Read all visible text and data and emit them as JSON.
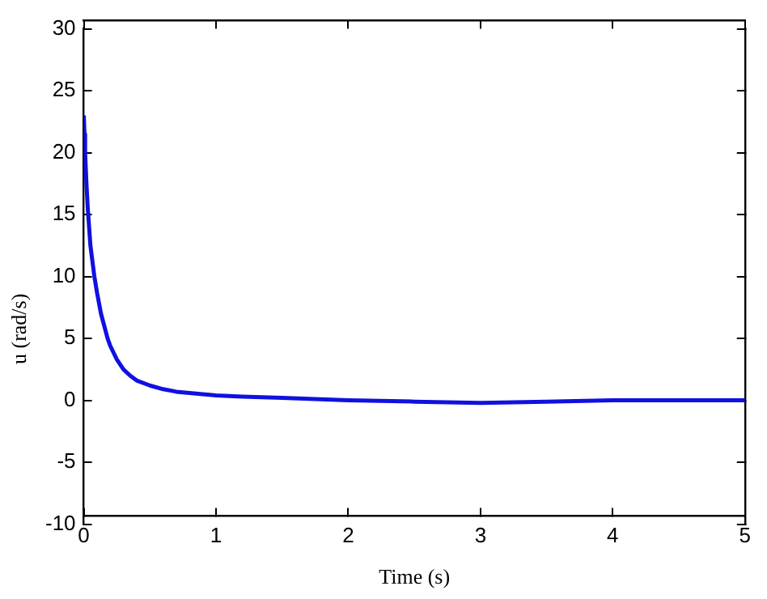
{
  "chart_data": {
    "type": "line",
    "xlabel": "Time (s)",
    "ylabel": "u (rad/s)",
    "series": [
      {
        "color": "#1010e0",
        "x": [
          0,
          0.005,
          0.01,
          0.02,
          0.03,
          0.05,
          0.08,
          0.1,
          0.13,
          0.15,
          0.18,
          0.2,
          0.25,
          0.3,
          0.35,
          0.4,
          0.5,
          0.6,
          0.7,
          0.8,
          1,
          1.2,
          1.5,
          2,
          2.5,
          3,
          3.5,
          4,
          4.5,
          5
        ],
        "values": [
          23,
          21.5,
          20,
          17.5,
          15.5,
          12.5,
          10,
          8.7,
          7,
          6.2,
          5,
          4.4,
          3.3,
          2.5,
          2,
          1.6,
          1.2,
          0.9,
          0.7,
          0.6,
          0.4,
          0.3,
          0.2,
          0,
          -0.1,
          -0.2,
          -0.1,
          0,
          0,
          0
        ]
      }
    ],
    "xlim": [
      0,
      5
    ],
    "xticks": [
      0,
      1,
      2,
      3,
      4,
      5
    ],
    "ylim": [
      -10,
      30
    ],
    "yticks": [
      -10,
      -5,
      0,
      5,
      10,
      15,
      20,
      25,
      30
    ],
    "grid": false,
    "legend": false,
    "marker": "none",
    "line_style": "solid"
  }
}
